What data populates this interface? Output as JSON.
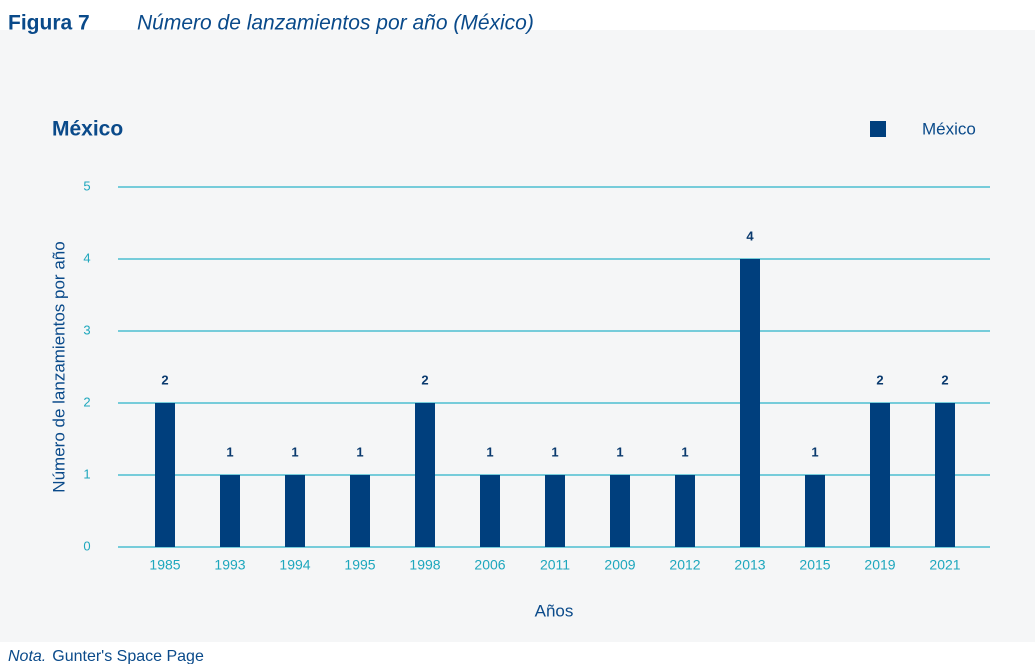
{
  "chart_data": {
    "type": "bar",
    "figure_label": "Figura 7",
    "title": "Número de lanzamientos por año (México)",
    "subtitle": "México",
    "x_label": "Años",
    "y_label": "Número de lanzamientos por año",
    "categories": [
      "1985",
      "1993",
      "1994",
      "1995",
      "1998",
      "2006",
      "2011",
      "2009",
      "2012",
      "2013",
      "2015",
      "2019",
      "2021"
    ],
    "series": [
      {
        "name": "México",
        "color": "#003f7d",
        "values": [
          2,
          1,
          1,
          1,
          2,
          1,
          1,
          1,
          1,
          4,
          1,
          2,
          2
        ]
      }
    ],
    "ylim": [
      0,
      5
    ],
    "yticks": [
      0,
      1,
      2,
      3,
      4,
      5
    ],
    "grid": true,
    "legend": "top-right",
    "note_label": "Nota.",
    "note": "Gunter's Space Page"
  }
}
